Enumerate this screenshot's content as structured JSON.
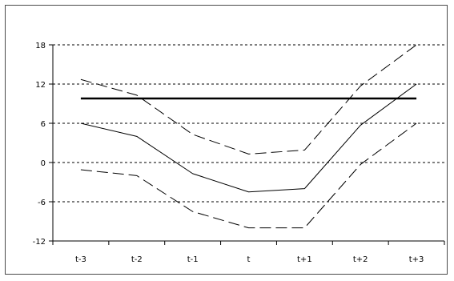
{
  "chart_data": {
    "type": "line",
    "title": "",
    "xlabel": "",
    "ylabel": "",
    "categories": [
      "t-3",
      "t-2",
      "t-1",
      "t",
      "t+1",
      "t+2",
      "t+3"
    ],
    "ylim": [
      -12,
      18
    ],
    "yticks": [
      -12,
      -6,
      0,
      6,
      12,
      18
    ],
    "grid": "horizontal dashed",
    "legend": "none",
    "series": [
      {
        "style": "solid-thin",
        "color": "#000000",
        "values": [
          6,
          4,
          -1.7,
          -4.5,
          -4,
          5.7,
          12
        ]
      },
      {
        "style": "dashed-upper",
        "color": "#000000",
        "values": [
          12.7,
          10.3,
          4.3,
          1.3,
          1.9,
          11.7,
          18
        ]
      },
      {
        "style": "dashed-lower",
        "color": "#000000",
        "values": [
          -1.1,
          -2,
          -7.5,
          -10,
          -10,
          -0.3,
          6
        ]
      },
      {
        "style": "solid-thick",
        "color": "#000000",
        "values": [
          9.8,
          9.8,
          9.8,
          9.8,
          9.8,
          9.8,
          9.8
        ]
      }
    ]
  }
}
